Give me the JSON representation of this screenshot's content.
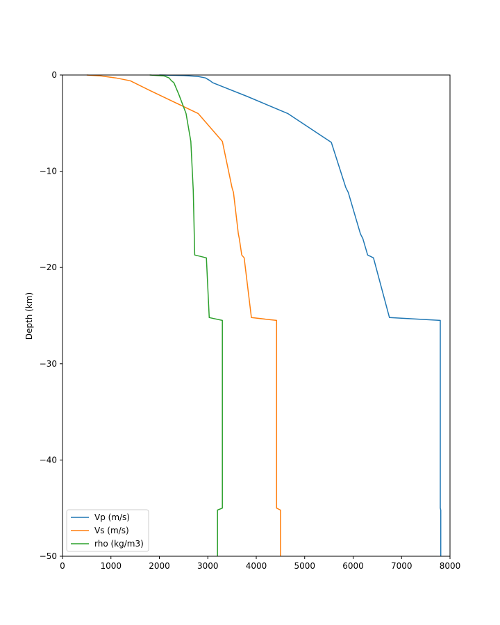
{
  "chart_data": {
    "type": "line",
    "xlabel": "",
    "ylabel": "Depth (km)",
    "xlim": [
      0,
      8000
    ],
    "ylim": [
      -50,
      0
    ],
    "xticks": [
      "0",
      "1000",
      "2000",
      "3000",
      "4000",
      "5000",
      "6000",
      "7000",
      "8000"
    ],
    "yticks": [
      "0",
      "−10",
      "−20",
      "−30",
      "−40",
      "−50"
    ],
    "grid": false,
    "legend_position": "lower-left",
    "series": [
      {
        "name": "Vp (m/s)",
        "color": "#1f77b4",
        "points": [
          [
            2000,
            0
          ],
          [
            2500,
            -0.05
          ],
          [
            2800,
            -0.15
          ],
          [
            2950,
            -0.3
          ],
          [
            3050,
            -0.6
          ],
          [
            3100,
            -0.8
          ],
          [
            3800,
            -2.2
          ],
          [
            4650,
            -4.0
          ],
          [
            5550,
            -7.0
          ],
          [
            5850,
            -11.7
          ],
          [
            5900,
            -12.2
          ],
          [
            6150,
            -16.5
          ],
          [
            6200,
            -17.0
          ],
          [
            6300,
            -18.7
          ],
          [
            6420,
            -19.0
          ],
          [
            6750,
            -25.2
          ],
          [
            7800,
            -25.5
          ],
          [
            7800,
            -45.0
          ],
          [
            7810,
            -45.2
          ],
          [
            7810,
            -50
          ]
        ]
      },
      {
        "name": "Vs (m/s)",
        "color": "#ff7f0e",
        "points": [
          [
            500,
            0
          ],
          [
            800,
            -0.1
          ],
          [
            1100,
            -0.3
          ],
          [
            1400,
            -0.6
          ],
          [
            1800,
            -1.6
          ],
          [
            2300,
            -2.8
          ],
          [
            2800,
            -4.0
          ],
          [
            3300,
            -6.9
          ],
          [
            3500,
            -11.7
          ],
          [
            3530,
            -12.2
          ],
          [
            3630,
            -16.5
          ],
          [
            3650,
            -17.0
          ],
          [
            3700,
            -18.7
          ],
          [
            3750,
            -19.0
          ],
          [
            3900,
            -25.2
          ],
          [
            4420,
            -25.5
          ],
          [
            4420,
            -45.0
          ],
          [
            4500,
            -45.2
          ],
          [
            4500,
            -50
          ]
        ]
      },
      {
        "name": "rho (kg/m3)",
        "color": "#2ca02c",
        "points": [
          [
            1800,
            0
          ],
          [
            2100,
            -0.1
          ],
          [
            2200,
            -0.3
          ],
          [
            2250,
            -0.6
          ],
          [
            2300,
            -0.8
          ],
          [
            2400,
            -2.0
          ],
          [
            2550,
            -4.0
          ],
          [
            2650,
            -6.9
          ],
          [
            2700,
            -12.0
          ],
          [
            2730,
            -18.7
          ],
          [
            2970,
            -19.0
          ],
          [
            3030,
            -25.2
          ],
          [
            3300,
            -25.5
          ],
          [
            3300,
            -45.0
          ],
          [
            3200,
            -45.2
          ],
          [
            3200,
            -50
          ]
        ]
      }
    ]
  }
}
